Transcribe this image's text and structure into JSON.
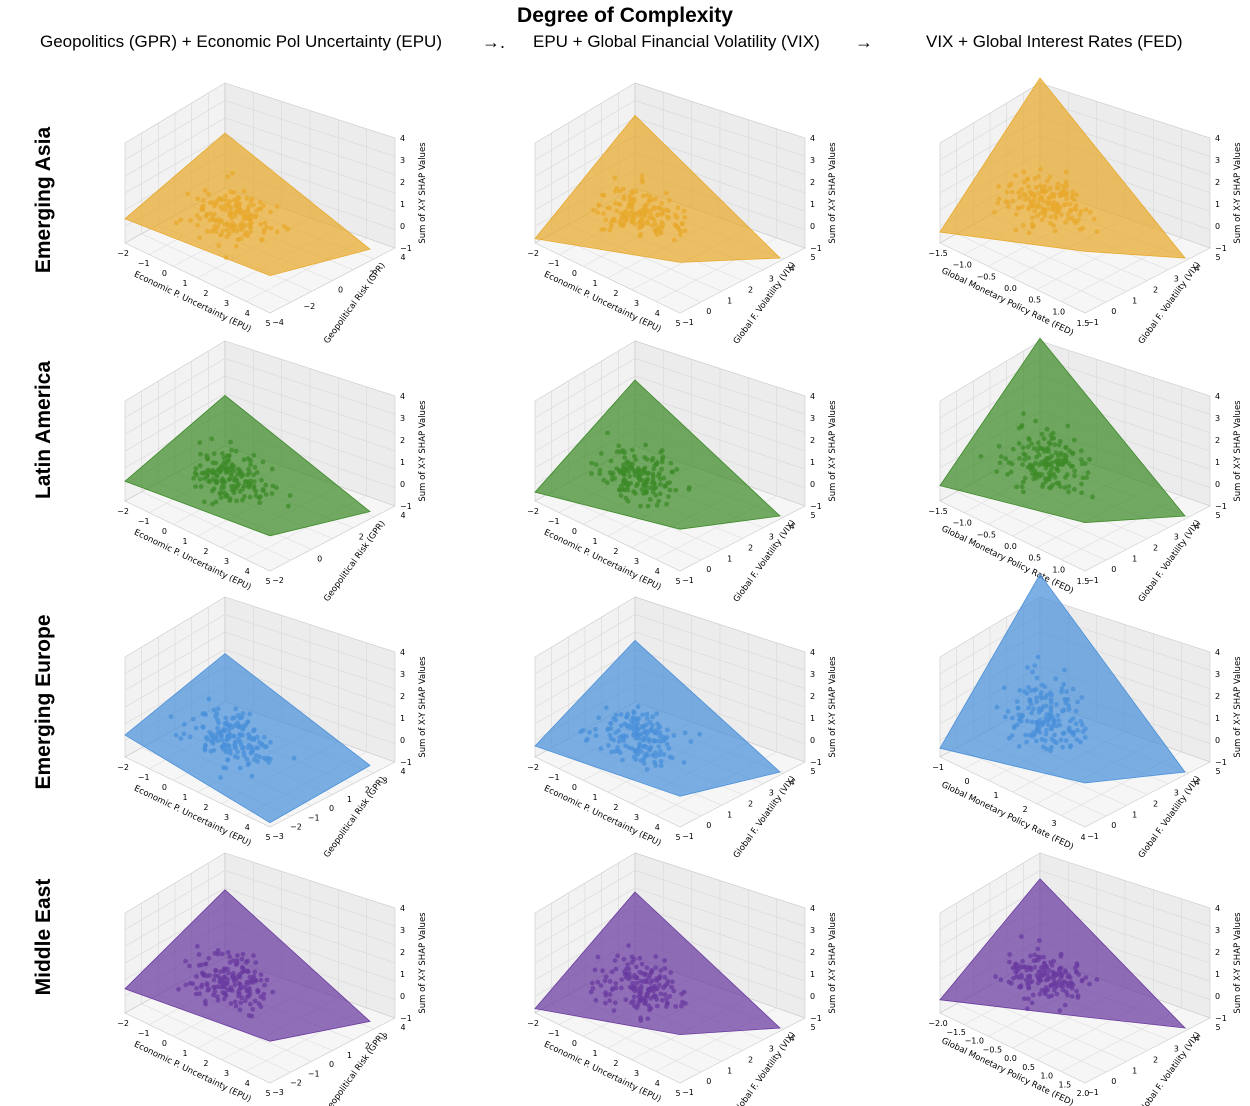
{
  "header": {
    "title": "Degree of Complexity",
    "columns": [
      "Geopolitics  (GPR)  + Economic Pol Uncertainty (EPU)",
      "EPU  + Global Financial Volatility (VIX)",
      "VIX  + Global Interest Rates (FED)"
    ],
    "arrows": [
      "→.",
      "→"
    ]
  },
  "rows": [
    "Emerging Asia",
    "Latin America",
    "Emerging Europe",
    "Middle East"
  ],
  "colors": {
    "Emerging Asia": "#e8a92c",
    "Latin America": "#3d8a28",
    "Emerging Europe": "#4a90d9",
    "Middle East": "#6a3aa0"
  },
  "chart_data": [
    {
      "type": "scatter3d+surface",
      "region": "Emerging Asia",
      "panel_index": 0,
      "xlabel": "Economic P. Uncertainty (EPU)",
      "ylabel": "Geopolitical Risk (GPR)",
      "zlabel": "Sum of X-Y SHAP Values",
      "xticks": [
        "−2",
        "−1",
        "0",
        "1",
        "2",
        "3",
        "4",
        "5"
      ],
      "yticks": [
        "−4",
        "−2",
        "0",
        "2",
        "4"
      ],
      "zticks": [
        "−1",
        "0",
        "1",
        "2",
        "3",
        "4"
      ],
      "zlim": [
        -1,
        4
      ],
      "surface_z_corners": [
        0.1,
        1.5,
        -0.6,
        0.7
      ]
    },
    {
      "type": "scatter3d+surface",
      "region": "Emerging Asia",
      "panel_index": 1,
      "xlabel": "Economic P. Uncertainty (EPU)",
      "ylabel": "Global F. Volatility (VIX)",
      "zlabel": "Sum of X-Y SHAP Values",
      "xticks": [
        "−2",
        "−1",
        "0",
        "1",
        "2",
        "3",
        "4",
        "5"
      ],
      "yticks": [
        "−1",
        "0",
        "1",
        "2",
        "3",
        "4",
        "5"
      ],
      "zticks": [
        "−1",
        "0",
        "1",
        "2",
        "3",
        "4"
      ],
      "zlim": [
        -1,
        4
      ],
      "surface_z_corners": [
        -0.8,
        2.3,
        -1.0,
        1.3
      ]
    },
    {
      "type": "scatter3d+surface",
      "region": "Emerging Asia",
      "panel_index": 2,
      "xlabel": "Global Monetary Policy Rate (FED)",
      "ylabel": "Global F. Volatility (VIX)",
      "zlabel": "Sum of X-Y SHAP Values",
      "xticks": [
        "−1.5",
        "−1.0",
        "−0.5",
        "0.0",
        "0.5",
        "1.0",
        "1.5"
      ],
      "yticks": [
        "−1",
        "0",
        "1",
        "2",
        "3",
        "4",
        "5"
      ],
      "zticks": [
        "−1",
        "0",
        "1",
        "2",
        "3",
        "4"
      ],
      "zlim": [
        -1,
        4
      ],
      "surface_z_corners": [
        -0.5,
        4.0,
        -1.0,
        1.8
      ]
    },
    {
      "type": "scatter3d+surface",
      "region": "Latin America",
      "panel_index": 0,
      "xlabel": "Economic P. Uncertainty (EPU)",
      "ylabel": "Geopolitical Risk (GPR)",
      "zlabel": "Sum of X-Y SHAP Values",
      "xticks": [
        "−2",
        "−1",
        "0",
        "1",
        "2",
        "3",
        "4",
        "5"
      ],
      "yticks": [
        "−2",
        "0",
        "2",
        "4"
      ],
      "zticks": [
        "−1",
        "0",
        "1",
        "2",
        "3",
        "4"
      ],
      "zlim": [
        -1,
        4
      ],
      "surface_z_corners": [
        -0.1,
        1.3,
        -0.8,
        0.6
      ]
    },
    {
      "type": "scatter3d+surface",
      "region": "Latin America",
      "panel_index": 1,
      "xlabel": "Economic P. Uncertainty (EPU)",
      "ylabel": "Global F. Volatility (VIX)",
      "zlabel": "Sum of X-Y SHAP Values",
      "xticks": [
        "−2",
        "−1",
        "0",
        "1",
        "2",
        "3",
        "4",
        "5"
      ],
      "yticks": [
        "−1",
        "0",
        "1",
        "2",
        "3",
        "4",
        "5"
      ],
      "zticks": [
        "−1",
        "0",
        "1",
        "2",
        "3",
        "4"
      ],
      "zlim": [
        -1,
        4
      ],
      "surface_z_corners": [
        -0.6,
        2.0,
        -1.0,
        0.9
      ]
    },
    {
      "type": "scatter3d+surface",
      "region": "Latin America",
      "panel_index": 2,
      "xlabel": "Global Monetary Policy Rate (FED)",
      "ylabel": "Global F. Volatility (VIX)",
      "zlabel": "Sum of X-Y SHAP Values",
      "xticks": [
        "−1.5",
        "−1.0",
        "−0.5",
        "0.0",
        "0.5",
        "1.0",
        "1.5"
      ],
      "yticks": [
        "−1",
        "0",
        "1",
        "2",
        "3",
        "4",
        "5"
      ],
      "zticks": [
        "−1",
        "0",
        "1",
        "2",
        "3",
        "4"
      ],
      "zlim": [
        -1,
        4
      ],
      "surface_z_corners": [
        -0.3,
        3.9,
        -1.0,
        1.2
      ]
    },
    {
      "type": "scatter3d+surface",
      "region": "Emerging Europe",
      "panel_index": 0,
      "xlabel": "Economic P. Uncertainty (EPU)",
      "ylabel": "Geopolitical Risk (GPR)",
      "zlabel": "Sum of X-Y SHAP Values",
      "xticks": [
        "−2",
        "−1",
        "0",
        "1",
        "2",
        "3",
        "4",
        "5"
      ],
      "yticks": [
        "−3",
        "−2",
        "−1",
        "0",
        "1",
        "2",
        "3",
        "4"
      ],
      "zticks": [
        "−1",
        "0",
        "1",
        "2",
        "3",
        "4"
      ],
      "zlim": [
        -1,
        4
      ],
      "surface_z_corners": [
        0.0,
        1.2,
        -0.7,
        -0.8
      ]
    },
    {
      "type": "scatter3d+surface",
      "region": "Emerging Europe",
      "panel_index": 1,
      "xlabel": "Economic P. Uncertainty (EPU)",
      "ylabel": "Global F. Volatility (VIX)",
      "zlabel": "Sum of X-Y SHAP Values",
      "xticks": [
        "−2",
        "−1",
        "0",
        "1",
        "2",
        "3",
        "4",
        "5"
      ],
      "yticks": [
        "−1",
        "0",
        "1",
        "2",
        "3",
        "4",
        "5"
      ],
      "zticks": [
        "−1",
        "0",
        "1",
        "2",
        "3",
        "4"
      ],
      "zlim": [
        -1,
        4
      ],
      "surface_z_corners": [
        -0.5,
        1.8,
        -1.0,
        0.4
      ]
    },
    {
      "type": "scatter3d+surface",
      "region": "Emerging Europe",
      "panel_index": 2,
      "xlabel": "Global Monetary Policy Rate (FED)",
      "ylabel": "Global F. Volatility (VIX)",
      "zlabel": "Sum of X-Y SHAP Values",
      "xticks": [
        "−1",
        "0",
        "1",
        "2",
        "3",
        "4"
      ],
      "yticks": [
        "−1",
        "0",
        "1",
        "2",
        "3",
        "4",
        "5"
      ],
      "zticks": [
        "−1",
        "0",
        "1",
        "2",
        "3",
        "4"
      ],
      "zlim": [
        -1,
        4
      ],
      "surface_z_corners": [
        -0.6,
        4.8,
        -1.0,
        1.0
      ]
    },
    {
      "type": "scatter3d+surface",
      "region": "Middle East",
      "panel_index": 0,
      "xlabel": "Economic P. Uncertainty (EPU)",
      "ylabel": "Geopolitical Risk (GPR)",
      "zlabel": "Sum of X-Y SHAP Values",
      "xticks": [
        "−2",
        "−1",
        "0",
        "1",
        "2",
        "3",
        "4",
        "5"
      ],
      "yticks": [
        "−3",
        "−2",
        "−1",
        "0",
        "1",
        "2",
        "3",
        "4"
      ],
      "zticks": [
        "−1",
        "0",
        "1",
        "2",
        "3",
        "4"
      ],
      "zlim": [
        -1,
        4
      ],
      "surface_z_corners": [
        0.1,
        2.1,
        -0.7,
        0.9
      ]
    },
    {
      "type": "scatter3d+surface",
      "region": "Middle East",
      "panel_index": 1,
      "xlabel": "Economic P. Uncertainty (EPU)",
      "ylabel": "Global F. Volatility (VIX)",
      "zlabel": "Sum of X-Y SHAP Values",
      "xticks": [
        "−2",
        "−1",
        "0",
        "1",
        "2",
        "3",
        "4",
        "5"
      ],
      "yticks": [
        "−1",
        "0",
        "1",
        "2",
        "3",
        "4",
        "5"
      ],
      "zticks": [
        "−1",
        "0",
        "1",
        "2",
        "3",
        "4"
      ],
      "zlim": [
        -1,
        4
      ],
      "surface_z_corners": [
        -0.8,
        2.0,
        -1.0,
        1.2
      ]
    },
    {
      "type": "scatter3d+surface",
      "region": "Middle East",
      "panel_index": 2,
      "xlabel": "Global Monetary Policy Rate (FED)",
      "ylabel": "Global F. Volatility (VIX)",
      "zlabel": "Sum of X-Y SHAP Values",
      "xticks": [
        "−2.0",
        "−1.5",
        "−1.0",
        "−0.5",
        "0.0",
        "0.5",
        "1.0",
        "1.5",
        "2.0"
      ],
      "yticks": [
        "−1",
        "0",
        "1",
        "2",
        "3",
        "4",
        "5"
      ],
      "zticks": [
        "−1",
        "0",
        "1",
        "2",
        "3",
        "4"
      ],
      "zlim": [
        -1,
        4
      ],
      "surface_z_corners": [
        -0.4,
        2.6,
        -1.0,
        2.0
      ]
    }
  ]
}
